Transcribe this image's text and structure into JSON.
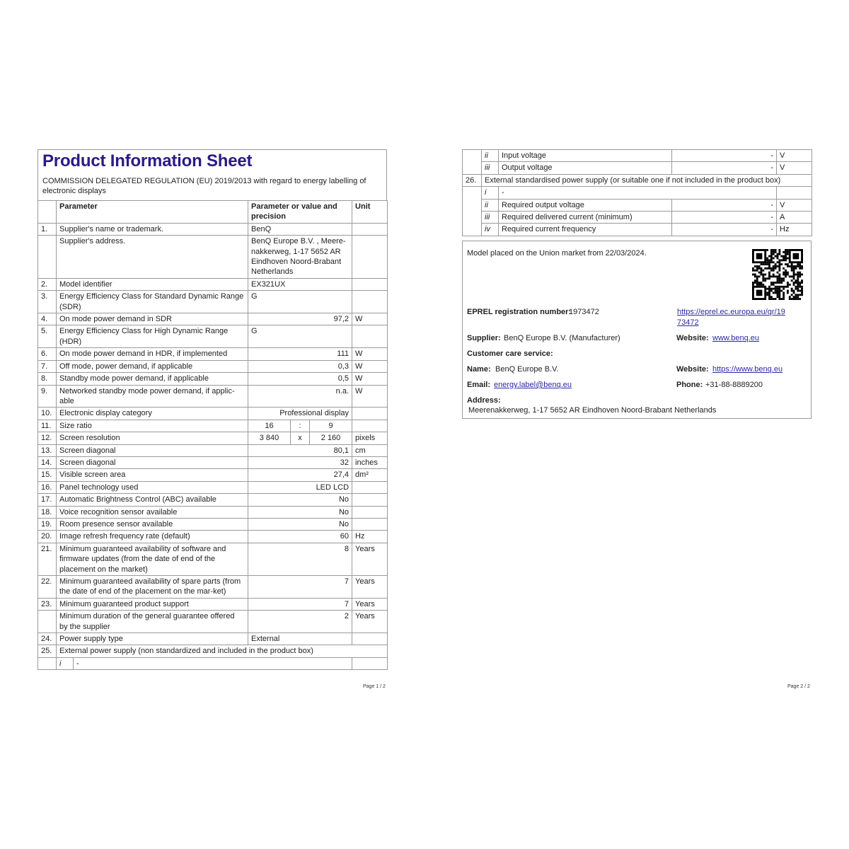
{
  "page1": {
    "title": "Product Information Sheet",
    "subtitle": "COMMISSION DELEGATED REGULATION (EU) 2019/2013 with regard to energy labelling of electronic displays",
    "headers": {
      "parameter": "Parameter",
      "value": "Parameter or value and precision",
      "unit": "Unit"
    },
    "rows": [
      {
        "type": "std",
        "num": "1.",
        "param": "Supplier's name or trademark.",
        "value": "BenQ",
        "align": "left",
        "unit": ""
      },
      {
        "type": "std",
        "num": "",
        "param": "Supplier's address.",
        "value": "BenQ Europe B.V. , Meere-nakkerweg, 1-17 5652 AR Eindhoven Noord-Brabant Netherlands",
        "align": "left",
        "unit": ""
      },
      {
        "type": "std",
        "num": "2.",
        "param": "Model identifier",
        "value": "EX321UX",
        "align": "left",
        "unit": ""
      },
      {
        "type": "std",
        "num": "3.",
        "param": "Energy Efficiency Class for Standard Dynamic Range (SDR)",
        "value": "G",
        "align": "left",
        "unit": ""
      },
      {
        "type": "std",
        "num": "4.",
        "param": "On mode power demand in SDR",
        "value": "97,2",
        "align": "right",
        "unit": "W"
      },
      {
        "type": "std",
        "num": "5.",
        "param": "Energy Efficiency Class for High Dynamic Range (HDR)",
        "value": "G",
        "align": "left",
        "unit": ""
      },
      {
        "type": "std",
        "num": "6.",
        "param": "On mode power demand in HDR, if implemented",
        "value": "111",
        "align": "right",
        "unit": "W"
      },
      {
        "type": "std",
        "num": "7.",
        "param": "Off mode, power demand, if applicable",
        "value": "0,3",
        "align": "right",
        "unit": "W"
      },
      {
        "type": "std",
        "num": "8.",
        "param": "Standby mode power demand, if applicable",
        "value": "0,5",
        "align": "right",
        "unit": "W"
      },
      {
        "type": "std",
        "num": "9.",
        "param": "Networked standby mode power demand, if applic-able",
        "value": "n.a.",
        "align": "right",
        "unit": "W"
      },
      {
        "type": "std",
        "num": "10.",
        "param": "Electronic display category",
        "value": "Professional display",
        "align": "right",
        "unit": ""
      },
      {
        "type": "ratio",
        "num": "11.",
        "param": "Size ratio",
        "parts": [
          "16",
          ":",
          "9"
        ],
        "unit": ""
      },
      {
        "type": "ratio",
        "num": "12.",
        "param": "Screen resolution",
        "parts": [
          "3 840",
          "x",
          "2 160"
        ],
        "unit": "pixels"
      },
      {
        "type": "std",
        "num": "13.",
        "param": "Screen diagonal",
        "value": "80,1",
        "align": "right",
        "unit": "cm"
      },
      {
        "type": "std",
        "num": "14.",
        "param": "Screen diagonal",
        "value": "32",
        "align": "right",
        "unit": "inches"
      },
      {
        "type": "std",
        "num": "15.",
        "param": "Visible screen area",
        "value": "27,4",
        "align": "right",
        "unit": "dm²"
      },
      {
        "type": "std",
        "num": "16.",
        "param": "Panel technology used",
        "value": "LED LCD",
        "align": "right",
        "unit": ""
      },
      {
        "type": "std",
        "num": "17.",
        "param": "Automatic Brightness Control (ABC) available",
        "value": "No",
        "align": "right",
        "unit": ""
      },
      {
        "type": "std",
        "num": "18.",
        "param": "Voice recognition sensor available",
        "value": "No",
        "align": "right",
        "unit": ""
      },
      {
        "type": "std",
        "num": "19.",
        "param": "Room presence sensor available",
        "value": "No",
        "align": "right",
        "unit": ""
      },
      {
        "type": "std",
        "num": "20.",
        "param": "Image refresh frequency rate (default)",
        "value": "60",
        "align": "right",
        "unit": "Hz"
      },
      {
        "type": "std",
        "num": "21.",
        "param": "Minimum guaranteed availability of software and firmware updates (from the date of end of the placement on the market)",
        "value": "8",
        "align": "right",
        "unit": "Years"
      },
      {
        "type": "std",
        "num": "22.",
        "param": "Minimum guaranteed availability of spare parts (from the date of end of the placement on the mar-ket)",
        "value": "7",
        "align": "right",
        "unit": "Years"
      },
      {
        "type": "std",
        "num": "23.",
        "param": "Minimum guaranteed product support",
        "value": "7",
        "align": "right",
        "unit": "Years"
      },
      {
        "type": "std",
        "num": "",
        "param": "Minimum duration of the general guarantee offered by the supplier",
        "value": "2",
        "align": "right",
        "unit": "Years"
      },
      {
        "type": "std",
        "num": "24.",
        "param": "Power supply type",
        "value": "External",
        "align": "left",
        "unit": ""
      },
      {
        "type": "span",
        "num": "25.",
        "text": "External power supply (non standardized and included in the product box)"
      },
      {
        "type": "sub",
        "sub": "i",
        "text": "-"
      }
    ],
    "page_label": "Page 1 / 2"
  },
  "page2": {
    "rows": [
      {
        "type": "sub3",
        "sub": "ii",
        "param": "Input voltage",
        "value": "-",
        "unit": "V"
      },
      {
        "type": "sub3",
        "sub": "iii",
        "param": "Output voltage",
        "value": "-",
        "unit": "V"
      },
      {
        "type": "span",
        "num": "26.",
        "text": "External standardised power supply (or suitable one if not included in the product box)"
      },
      {
        "type": "sub",
        "sub": "i",
        "text": "-"
      },
      {
        "type": "sub3",
        "sub": "ii",
        "param": "Required output voltage",
        "value": "-",
        "unit": "V"
      },
      {
        "type": "sub3",
        "sub": "iii",
        "param": "Required delivered current (minimum)",
        "value": "-",
        "unit": "A"
      },
      {
        "type": "sub3",
        "sub": "iv",
        "param": "Required current frequency",
        "value": "-",
        "unit": "Hz"
      }
    ],
    "info": {
      "market_text": "Model placed on the Union market from 22/03/2024.",
      "eprel_label": "EPREL registration number:",
      "eprel_number": "1973472",
      "eprel_url_line1": "https://eprel.ec.europa.eu/qr/19",
      "eprel_url_line2": "73472",
      "supplier_label": "Supplier:",
      "supplier_value": "BenQ Europe B.V. (Manufacturer)",
      "website_label": "Website:",
      "website_value": "www.benq.eu",
      "customer_care_label": "Customer care service:",
      "name_label": "Name:",
      "name_value": "BenQ Europe B.V.",
      "cc_website_label": "Website:",
      "cc_website_value": "https://www.benq.eu",
      "email_label": "Email:",
      "email_value": "energy.label@benq.eu",
      "phone_label": "Phone:",
      "phone_value": "+31-88-8889200",
      "address_label": "Address:",
      "address_value": "Meerenakkerweg, 1-17 5652 AR Eindhoven Noord-Brabant Netherlands",
      "qr_icon": "qr-code"
    },
    "page_label": "Page 2 / 2"
  },
  "colors": {
    "title": "#2d1a84",
    "link": "#2a2aa0",
    "border": "#9a9a9a"
  }
}
